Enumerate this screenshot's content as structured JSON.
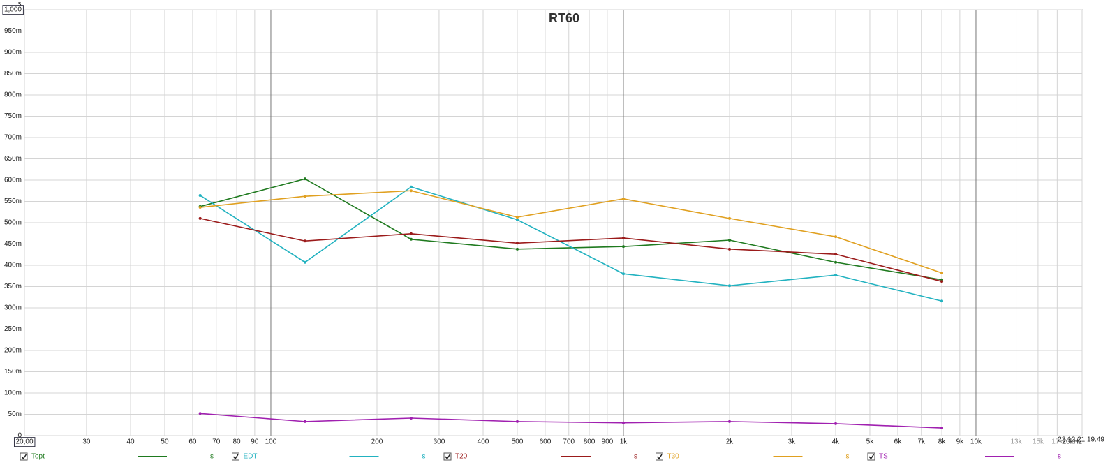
{
  "chart_data": {
    "type": "line",
    "title": "RT60",
    "y_unit": "s",
    "timestamp": "23.12.21 19:49",
    "log_x": true,
    "grid": true,
    "xlim": [
      20,
      20000
    ],
    "ylim": [
      0,
      1
    ],
    "xticks": [
      {
        "value": 20,
        "label": "20,00"
      },
      30,
      40,
      50,
      60,
      70,
      80,
      90,
      100,
      200,
      300,
      400,
      500,
      600,
      700,
      800,
      900,
      {
        "value": 1000,
        "label": "1k"
      },
      {
        "value": 2000,
        "label": "2k"
      },
      {
        "value": 3000,
        "label": "3k"
      },
      {
        "value": 4000,
        "label": "4k"
      },
      {
        "value": 5000,
        "label": "5k"
      },
      {
        "value": 6000,
        "label": "6k"
      },
      {
        "value": 7000,
        "label": "7k"
      },
      {
        "value": 8000,
        "label": "8k"
      },
      {
        "value": 9000,
        "label": "9k"
      },
      {
        "value": 10000,
        "label": "10k"
      },
      {
        "value": 13000,
        "label": "13k"
      },
      {
        "value": 15000,
        "label": "15k"
      },
      {
        "value": 17000,
        "label": "17k"
      },
      {
        "value": 20000,
        "label": "20kHz"
      }
    ],
    "yticks": [
      0,
      {
        "value": 0.05,
        "label": "50m"
      },
      {
        "value": 0.1,
        "label": "100m"
      },
      {
        "value": 0.15,
        "label": "150m"
      },
      {
        "value": 0.2,
        "label": "200m"
      },
      {
        "value": 0.25,
        "label": "250m"
      },
      {
        "value": 0.3,
        "label": "300m"
      },
      {
        "value": 0.35,
        "label": "350m"
      },
      {
        "value": 0.4,
        "label": "400m"
      },
      {
        "value": 0.45,
        "label": "450m"
      },
      {
        "value": 0.5,
        "label": "500m"
      },
      {
        "value": 0.55,
        "label": "550m"
      },
      {
        "value": 0.6,
        "label": "600m"
      },
      {
        "value": 0.65,
        "label": "650m"
      },
      {
        "value": 0.7,
        "label": "700m"
      },
      {
        "value": 0.75,
        "label": "750m"
      },
      {
        "value": 0.8,
        "label": "800m"
      },
      {
        "value": 0.85,
        "label": "850m"
      },
      {
        "value": 0.9,
        "label": "900m"
      },
      {
        "value": 0.95,
        "label": "950m"
      },
      {
        "value": 1,
        "label": "1,000"
      }
    ],
    "x": [
      63,
      125,
      250,
      500,
      1000,
      2000,
      4000,
      8000
    ],
    "series": [
      {
        "name": "Topt",
        "color": "#1f7a1f",
        "values": [
          0.538,
          0.603,
          0.461,
          0.438,
          0.444,
          0.459,
          0.407,
          0.366
        ]
      },
      {
        "name": "EDT",
        "color": "#22b2c0",
        "values": [
          0.564,
          0.407,
          0.584,
          0.507,
          0.38,
          0.352,
          0.377,
          0.316
        ]
      },
      {
        "name": "T20",
        "color": "#9b1b1b",
        "values": [
          0.51,
          0.457,
          0.474,
          0.452,
          0.464,
          0.438,
          0.426,
          0.362
        ]
      },
      {
        "name": "T30",
        "color": "#e0a020",
        "values": [
          0.536,
          0.562,
          0.575,
          0.513,
          0.556,
          0.51,
          0.467,
          0.382
        ]
      },
      {
        "name": "TS",
        "color": "#a020b0",
        "values": [
          0.052,
          0.033,
          0.041,
          0.033,
          0.03,
          0.033,
          0.028,
          0.018
        ]
      }
    ]
  }
}
